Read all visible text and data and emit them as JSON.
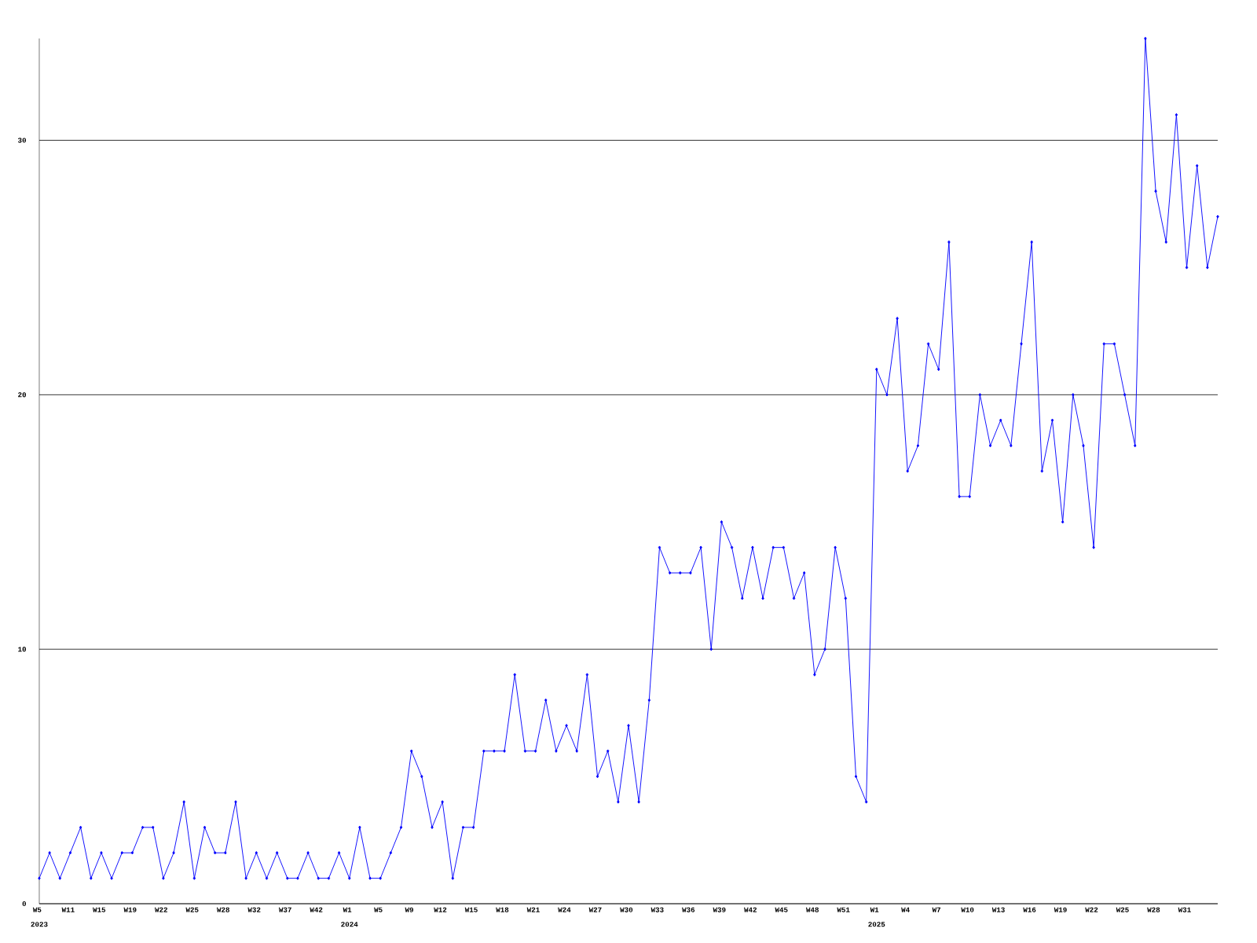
{
  "chart_data": {
    "type": "line",
    "categories": [
      "W5",
      null,
      null,
      "W11",
      null,
      null,
      "W15",
      null,
      null,
      "W19",
      null,
      null,
      "W22",
      null,
      null,
      "W25",
      null,
      null,
      "W28",
      null,
      null,
      "W32",
      null,
      null,
      "W37",
      null,
      null,
      "W42",
      null,
      null,
      "W1",
      null,
      null,
      "W5",
      null,
      null,
      "W9",
      null,
      null,
      "W12",
      null,
      null,
      "W15",
      null,
      null,
      "W18",
      null,
      null,
      "W21",
      null,
      null,
      "W24",
      null,
      null,
      "W27",
      null,
      null,
      "W30",
      null,
      null,
      "W33",
      null,
      null,
      "W36",
      null,
      null,
      "W39",
      null,
      null,
      "W42",
      null,
      null,
      "W45",
      null,
      null,
      "W48",
      null,
      null,
      "W51",
      null,
      null,
      "W1",
      null,
      null,
      "W4",
      null,
      null,
      "W7",
      null,
      null,
      "W10",
      null,
      null,
      "W13",
      null,
      null,
      "W16",
      null,
      null,
      "W19",
      null,
      null,
      "W22",
      null,
      null,
      "W25",
      null,
      null,
      "W28",
      null,
      null,
      "W31",
      null,
      null,
      null
    ],
    "values": [
      1,
      2,
      1,
      2,
      3,
      1,
      2,
      1,
      2,
      2,
      3,
      3,
      1,
      2,
      4,
      1,
      3,
      2,
      2,
      4,
      1,
      2,
      1,
      2,
      1,
      1,
      2,
      1,
      1,
      2,
      1,
      3,
      1,
      1,
      2,
      3,
      6,
      5,
      3,
      4,
      1,
      3,
      3,
      6,
      6,
      6,
      9,
      6,
      6,
      8,
      6,
      7,
      6,
      9,
      5,
      6,
      4,
      7,
      4,
      8,
      14,
      13,
      13,
      13,
      14,
      10,
      15,
      14,
      12,
      14,
      12,
      14,
      14,
      12,
      13,
      9,
      10,
      14,
      12,
      5,
      4,
      21,
      20,
      23,
      17,
      18,
      22,
      21,
      26,
      16,
      16,
      20,
      18,
      19,
      18,
      22,
      26,
      17,
      19,
      15,
      20,
      18,
      14,
      22,
      22,
      20,
      18,
      34,
      28,
      26,
      31,
      25,
      29,
      25,
      27
    ],
    "color": "#0000ff",
    "ylim": [
      0,
      34
    ],
    "yticks": [
      0,
      10,
      20,
      30
    ],
    "grid": "y",
    "marker": "diamond",
    "line_style": "solid",
    "annotations": [
      "2023",
      "2024",
      "2025"
    ]
  }
}
